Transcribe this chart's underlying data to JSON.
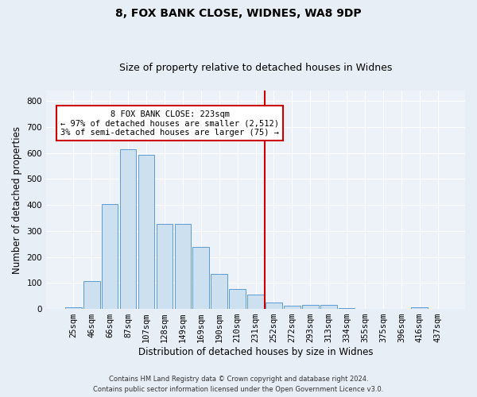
{
  "title1": "8, FOX BANK CLOSE, WIDNES, WA8 9DP",
  "title2": "Size of property relative to detached houses in Widnes",
  "xlabel": "Distribution of detached houses by size in Widnes",
  "ylabel": "Number of detached properties",
  "footer": "Contains HM Land Registry data © Crown copyright and database right 2024.\nContains public sector information licensed under the Open Government Licence v3.0.",
  "bar_labels": [
    "25sqm",
    "46sqm",
    "66sqm",
    "87sqm",
    "107sqm",
    "128sqm",
    "149sqm",
    "169sqm",
    "190sqm",
    "210sqm",
    "231sqm",
    "252sqm",
    "272sqm",
    "293sqm",
    "313sqm",
    "334sqm",
    "355sqm",
    "375sqm",
    "396sqm",
    "416sqm",
    "437sqm"
  ],
  "bar_values": [
    7,
    107,
    403,
    613,
    593,
    328,
    328,
    237,
    135,
    77,
    55,
    25,
    12,
    15,
    15,
    2,
    0,
    0,
    0,
    7,
    0
  ],
  "bar_color": "#cce0f0",
  "bar_edgecolor": "#5b9bd5",
  "vline_x": 10.5,
  "vline_color": "#cc0000",
  "annotation_text": "8 FOX BANK CLOSE: 223sqm\n← 97% of detached houses are smaller (2,512)\n3% of semi-detached houses are larger (75) →",
  "annotation_box_color": "#ffffff",
  "annotation_box_edgecolor": "#cc0000",
  "ylim": [
    0,
    840
  ],
  "yticks": [
    0,
    100,
    200,
    300,
    400,
    500,
    600,
    700,
    800
  ],
  "bg_color": "#e8eef5",
  "plot_bg_color": "#edf2f8",
  "grid_color": "#ffffff",
  "title_fontsize": 10,
  "subtitle_fontsize": 9,
  "tick_fontsize": 7.5,
  "ylabel_fontsize": 8.5,
  "xlabel_fontsize": 8.5,
  "annotation_fontsize": 7.5,
  "footer_fontsize": 6
}
